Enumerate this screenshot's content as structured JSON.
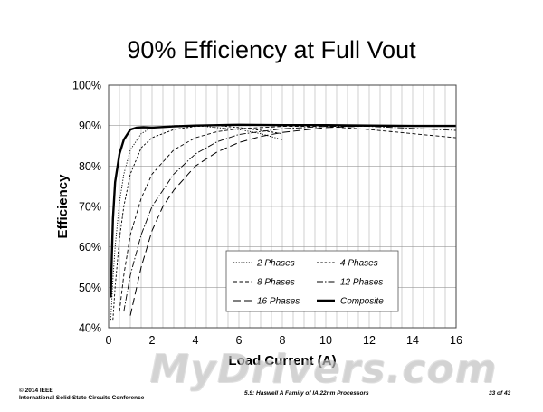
{
  "slide": {
    "title": "90% Efficiency at Full Vout",
    "watermark": "MyDrivers.com",
    "copyright": "© 2014 IEEE",
    "conference": "International Solid-State Circuits Conference",
    "session": "5.9: Haswell A Family of IA 22nm Processors",
    "page": "33 of 43"
  },
  "chart_data": {
    "type": "line",
    "title": "90% Efficiency at Full Vout",
    "xlabel": "Load Current (A)",
    "ylabel": "Efficiency",
    "xlim": [
      0,
      16
    ],
    "ylim": [
      40,
      100
    ],
    "xticks": [
      "0",
      "2",
      "4",
      "6",
      "8",
      "10",
      "12",
      "14",
      "16"
    ],
    "yticks": [
      "40%",
      "50%",
      "60%",
      "70%",
      "80%",
      "90%",
      "100%"
    ],
    "grid": true,
    "legend_position": "inside-bottom-right",
    "series": [
      {
        "name": "2 Phases",
        "x": [
          0.1,
          0.2,
          0.3,
          0.5,
          0.7,
          1,
          1.5,
          2,
          3,
          4,
          5,
          6,
          7,
          8
        ],
        "y": [
          42,
          52,
          60,
          71,
          78,
          84,
          88,
          89.5,
          90,
          90,
          89.5,
          89,
          88,
          86.5
        ]
      },
      {
        "name": "4 Phases",
        "x": [
          0.2,
          0.3,
          0.5,
          0.7,
          1,
          1.5,
          2,
          3,
          4,
          5,
          6,
          7,
          8
        ],
        "y": [
          42,
          50,
          62,
          70,
          78,
          84.5,
          87,
          89,
          89.8,
          90,
          89.5,
          88.8,
          88
        ]
      },
      {
        "name": "8 Phases",
        "x": [
          0.5,
          0.7,
          1,
          1.5,
          2,
          3,
          4,
          5,
          6,
          8,
          10,
          12,
          14,
          16
        ],
        "y": [
          44,
          53,
          63,
          72,
          78,
          84,
          87,
          88.5,
          89.2,
          89.8,
          89.8,
          89,
          88,
          87
        ]
      },
      {
        "name": "12 Phases",
        "x": [
          0.7,
          1,
          1.5,
          2,
          3,
          4,
          5,
          6,
          8,
          10,
          12,
          14,
          16
        ],
        "y": [
          44,
          53,
          63,
          70,
          78,
          83,
          86,
          87.8,
          89.2,
          89.8,
          89.8,
          89.3,
          88.8
        ]
      },
      {
        "name": "16 Phases",
        "x": [
          1,
          1.5,
          2,
          2.5,
          3,
          4,
          5,
          6,
          7,
          8,
          10,
          12,
          14,
          16
        ],
        "y": [
          43,
          55,
          64,
          70,
          74,
          80,
          83.5,
          85.8,
          87.3,
          88.3,
          89.5,
          89.9,
          89.9,
          89.8
        ]
      },
      {
        "name": "Composite",
        "x": [
          0.1,
          0.15,
          0.2,
          0.3,
          0.5,
          0.7,
          1,
          1.3,
          1.6,
          2,
          3,
          4,
          6,
          8,
          10,
          12,
          14,
          16
        ],
        "y": [
          47.5,
          58,
          67,
          76,
          83,
          86.5,
          89,
          89.5,
          89.6,
          89.5,
          89.8,
          90,
          90.2,
          90.1,
          90.1,
          90,
          89.9,
          89.9
        ]
      }
    ],
    "styles": {
      "2 Phases": {
        "dash": "1.2,1.6",
        "width": 0.9
      },
      "4 Phases": {
        "dash": "2.5,1.8",
        "width": 0.9
      },
      "8 Phases": {
        "dash": "4,2.5",
        "width": 0.9
      },
      "12 Phases": {
        "dash": "7,2,1.5,2",
        "width": 0.9
      },
      "16 Phases": {
        "dash": "8,4",
        "width": 1.0
      },
      "Composite": {
        "dash": "",
        "width": 2.4
      }
    },
    "line_color": "#000000",
    "grid_color": "#b0b0b0"
  }
}
